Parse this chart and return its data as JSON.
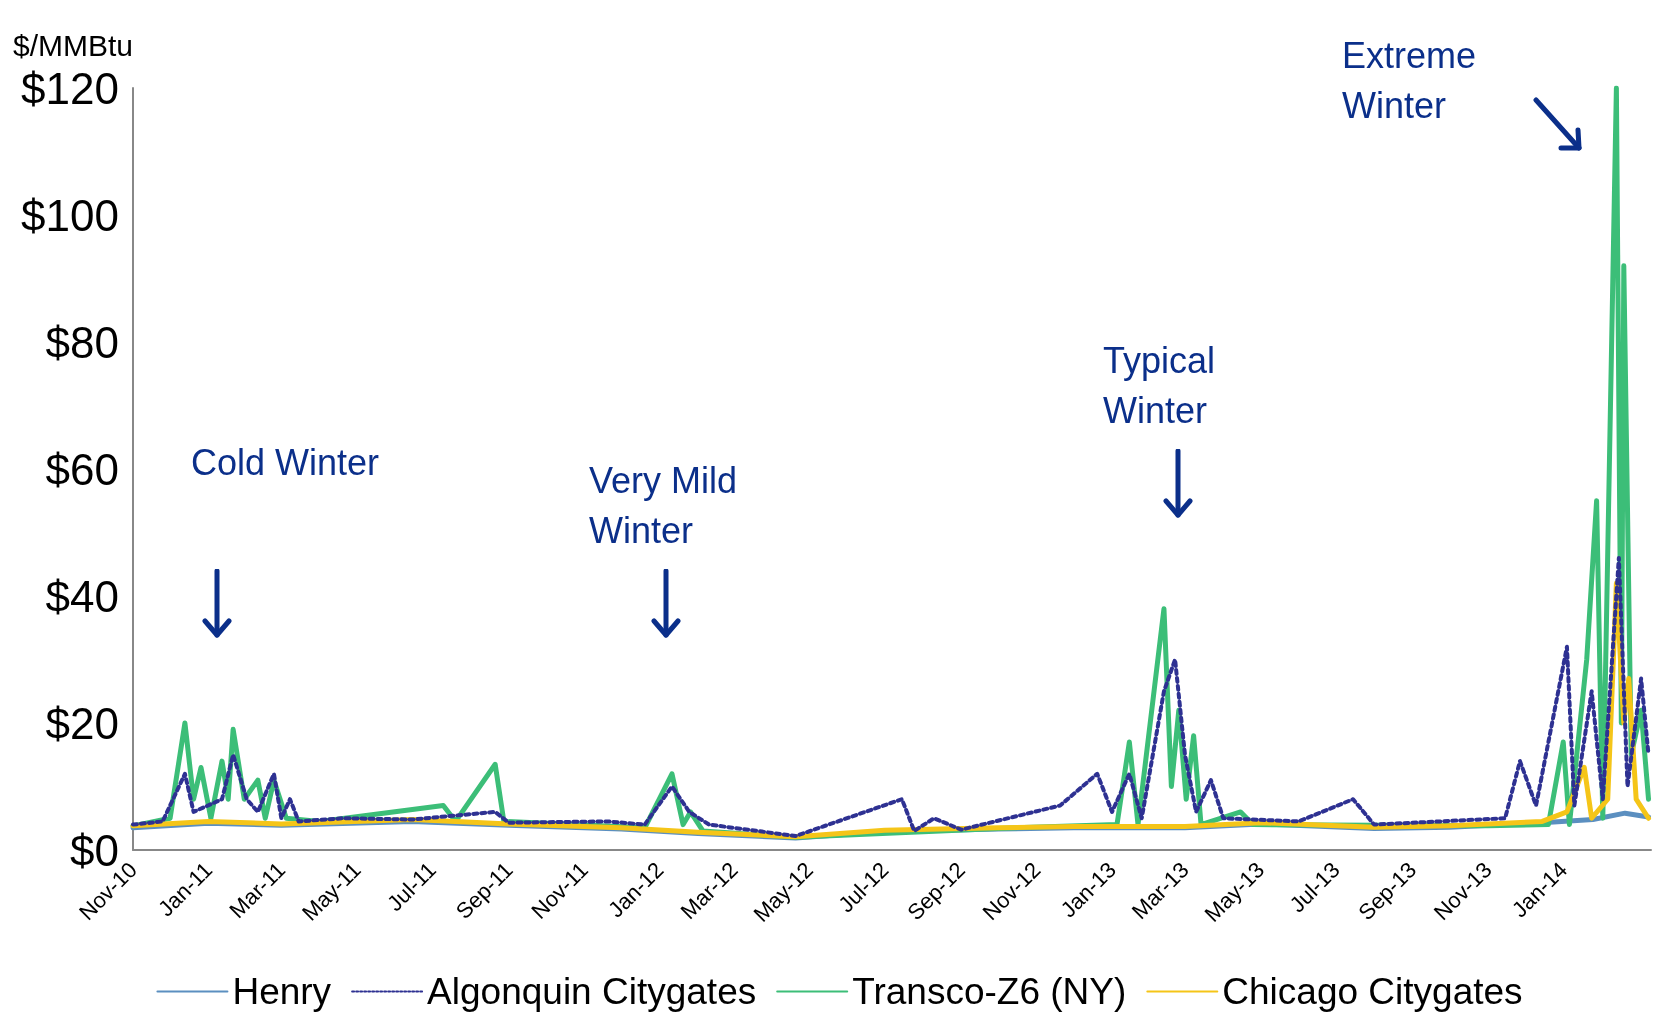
{
  "chart_data": {
    "type": "line",
    "ylabel": "$/MMBtu",
    "xlim": [
      "2010-11-01",
      "2014-03-13"
    ],
    "xticks": [
      {
        "value": "2010-11-01",
        "label": "Nov-10"
      },
      {
        "value": "2011-01-01",
        "label": "Jan-11"
      },
      {
        "value": "2011-03-01",
        "label": "Mar-11"
      },
      {
        "value": "2011-05-01",
        "label": "May-11"
      },
      {
        "value": "2011-07-01",
        "label": "Jul-11"
      },
      {
        "value": "2011-09-01",
        "label": "Sep-11"
      },
      {
        "value": "2011-11-01",
        "label": "Nov-11"
      },
      {
        "value": "2012-01-01",
        "label": "Jan-12"
      },
      {
        "value": "2012-03-01",
        "label": "Mar-12"
      },
      {
        "value": "2012-05-01",
        "label": "May-12"
      },
      {
        "value": "2012-07-01",
        "label": "Jul-12"
      },
      {
        "value": "2012-09-01",
        "label": "Sep-12"
      },
      {
        "value": "2012-11-01",
        "label": "Nov-12"
      },
      {
        "value": "2013-01-01",
        "label": "Jan-13"
      },
      {
        "value": "2013-03-01",
        "label": "Mar-13"
      },
      {
        "value": "2013-05-01",
        "label": "May-13"
      },
      {
        "value": "2013-07-01",
        "label": "Jul-13"
      },
      {
        "value": "2013-09-01",
        "label": "Sep-13"
      },
      {
        "value": "2013-11-01",
        "label": "Nov-13"
      },
      {
        "value": "2014-01-01",
        "label": "Jan-14"
      }
    ],
    "ylim": [
      0,
      120
    ],
    "yticks": [
      {
        "value": 0,
        "label": "$0"
      },
      {
        "value": 20,
        "label": "$20"
      },
      {
        "value": 40,
        "label": "$40"
      },
      {
        "value": 60,
        "label": "$60"
      },
      {
        "value": 80,
        "label": "$80"
      },
      {
        "value": 100,
        "label": "$100"
      },
      {
        "value": 120,
        "label": "$120"
      }
    ],
    "grid": false,
    "legend": "bottom",
    "marker": "none",
    "annotations": [
      "Cold Winter",
      "Very Mild Winter",
      "Typical Winter",
      "Extreme Winter"
    ],
    "series": [
      {
        "name": "Henry",
        "color": "#5b8fc0",
        "line_style": "solid",
        "x": [
          "2010-11-01",
          "2011-01-01",
          "2011-03-01",
          "2011-06-15",
          "2011-09-01",
          "2011-12-01",
          "2012-02-01",
          "2012-04-20",
          "2012-07-01",
          "2012-10-01",
          "2012-12-01",
          "2013-03-01",
          "2013-05-01",
          "2013-08-01",
          "2013-10-01",
          "2013-12-15",
          "2014-01-25",
          "2014-02-20",
          "2014-03-11"
        ],
        "values": [
          3.5,
          4.2,
          3.9,
          4.5,
          3.9,
          3.3,
          2.6,
          1.9,
          2.9,
          3.3,
          3.5,
          3.5,
          4.1,
          3.4,
          3.6,
          4.3,
          4.8,
          5.8,
          5.2
        ]
      },
      {
        "name": "Algonquin Citygates",
        "color": "#2e3192",
        "line_style": "dotted",
        "x": [
          "2010-11-01",
          "2010-11-25",
          "2010-12-13",
          "2010-12-20",
          "2011-01-12",
          "2011-01-21",
          "2011-02-01",
          "2011-02-10",
          "2011-02-23",
          "2011-03-01",
          "2011-03-08",
          "2011-03-15",
          "2011-04-20",
          "2011-06-15",
          "2011-08-21",
          "2011-09-01",
          "2011-11-20",
          "2011-12-20",
          "2012-01-11",
          "2012-01-25",
          "2012-02-10",
          "2012-04-20",
          "2012-07-15",
          "2012-07-25",
          "2012-08-10",
          "2012-09-01",
          "2012-11-20",
          "2012-12-20",
          "2013-01-01",
          "2013-01-15",
          "2013-01-25",
          "2013-02-12",
          "2013-02-21",
          "2013-03-01",
          "2013-03-10",
          "2013-03-22",
          "2013-04-01",
          "2013-06-01",
          "2013-07-15",
          "2013-08-01",
          "2013-11-15",
          "2013-11-27",
          "2013-12-10",
          "2014-01-04",
          "2014-01-10",
          "2014-01-24",
          "2014-02-02",
          "2014-02-15",
          "2014-02-22",
          "2014-03-05",
          "2014-03-11"
        ],
        "values": [
          4,
          4.5,
          12,
          6,
          8,
          15,
          8,
          6,
          12,
          5,
          8,
          4.5,
          5,
          4.8,
          6,
          4.3,
          4.5,
          4,
          10,
          6,
          4,
          2.2,
          8,
          3,
          5,
          3.2,
          7,
          12,
          6,
          12,
          5,
          25,
          30,
          15,
          6,
          11,
          5,
          4.5,
          8,
          4,
          5,
          14,
          7,
          32,
          7,
          25,
          8,
          46,
          10,
          27,
          15
        ]
      },
      {
        "name": "Transco-Z6 (NY)",
        "color": "#3cbe78",
        "line_style": "solid",
        "x": [
          "2010-11-01",
          "2010-12-01",
          "2010-12-13",
          "2010-12-20",
          "2010-12-26",
          "2011-01-03",
          "2011-01-12",
          "2011-01-17",
          "2011-01-21",
          "2011-01-30",
          "2011-02-10",
          "2011-02-16",
          "2011-02-23",
          "2011-03-05",
          "2011-04-01",
          "2011-07-10",
          "2011-07-20",
          "2011-08-21",
          "2011-08-28",
          "2011-12-20",
          "2012-01-11",
          "2012-01-20",
          "2012-01-26",
          "2012-02-05",
          "2012-04-20",
          "2012-10-01",
          "2013-01-05",
          "2013-01-15",
          "2013-01-22",
          "2013-02-12",
          "2013-02-18",
          "2013-02-24",
          "2013-03-02",
          "2013-03-08",
          "2013-03-14",
          "2013-04-15",
          "2013-04-25",
          "2013-11-01",
          "2013-12-20",
          "2014-01-01",
          "2014-01-06",
          "2014-01-20",
          "2014-01-28",
          "2014-02-02",
          "2014-02-13",
          "2014-02-17",
          "2014-02-19",
          "2014-02-25",
          "2014-03-05",
          "2014-03-11"
        ],
        "values": [
          3.8,
          5,
          20,
          8,
          13,
          5,
          14,
          8,
          19,
          8,
          11,
          5,
          11,
          5,
          4.5,
          7,
          4.5,
          13.5,
          4.5,
          3.5,
          12,
          4,
          6,
          3,
          2,
          3.4,
          4,
          17,
          4,
          38,
          10,
          22,
          8,
          18,
          4,
          6,
          4,
          3.8,
          4,
          17,
          4,
          30,
          55,
          5,
          120,
          20,
          92,
          15,
          22,
          8
        ]
      },
      {
        "name": "Chicago Citygates",
        "color": "#f5c518",
        "line_style": "solid",
        "x": [
          "2010-11-01",
          "2011-01-01",
          "2011-03-01",
          "2011-06-15",
          "2011-09-01",
          "2011-12-01",
          "2012-02-01",
          "2012-04-20",
          "2012-07-01",
          "2012-10-01",
          "2012-12-01",
          "2013-03-01",
          "2013-05-01",
          "2013-08-01",
          "2013-10-01",
          "2013-12-15",
          "2014-01-04",
          "2014-01-18",
          "2014-01-24",
          "2014-02-06",
          "2014-02-13",
          "2014-02-19",
          "2014-02-23",
          "2014-03-01",
          "2014-03-11"
        ],
        "values": [
          3.8,
          4.5,
          4.1,
          4.8,
          4.1,
          3.5,
          2.8,
          2.1,
          3.1,
          3.5,
          3.7,
          3.7,
          4.3,
          3.6,
          3.8,
          4.5,
          6,
          13,
          5,
          8,
          42,
          20,
          27,
          8,
          5
        ]
      }
    ]
  }
}
